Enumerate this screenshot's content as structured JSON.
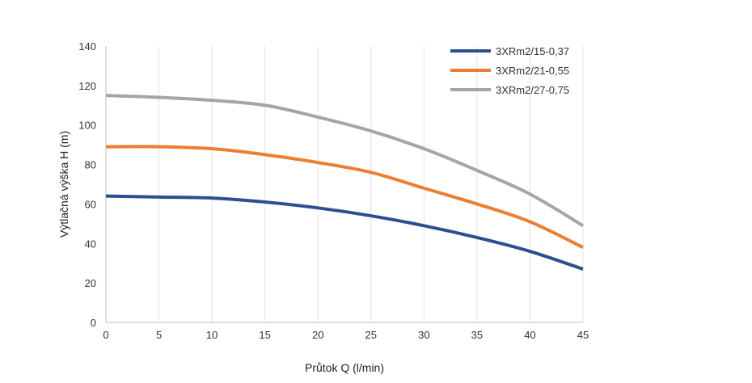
{
  "chart_data": {
    "type": "line",
    "title": "",
    "xlabel": "Průtok Q (l/min)",
    "ylabel": "Výtlačná výška H (m)",
    "xlim": [
      0,
      45
    ],
    "ylim": [
      0,
      140
    ],
    "x_ticks": [
      "0",
      "5",
      "10",
      "15",
      "20",
      "25",
      "30",
      "35",
      "40",
      "45"
    ],
    "y_ticks": [
      "0",
      "20",
      "40",
      "60",
      "80",
      "100",
      "120",
      "140"
    ],
    "grid": "vertical",
    "legend_position": "top-right",
    "x": [
      0,
      5,
      10,
      15,
      20,
      25,
      30,
      35,
      40,
      45
    ],
    "series": [
      {
        "name": "3XRm2/15-0,37",
        "color": "#2f4e92",
        "values": [
          64,
          63.5,
          63,
          61,
          58,
          54,
          49,
          43,
          36,
          27
        ]
      },
      {
        "name": "3XRm2/21-0,55",
        "color": "#ed7d31",
        "values": [
          89,
          89,
          88,
          85,
          81,
          76,
          68,
          60,
          51,
          38
        ]
      },
      {
        "name": "3XRm2/27-0,75",
        "color": "#a5a5a5",
        "values": [
          115,
          114,
          112.5,
          110,
          104,
          97,
          88,
          77,
          65,
          49
        ]
      }
    ]
  }
}
